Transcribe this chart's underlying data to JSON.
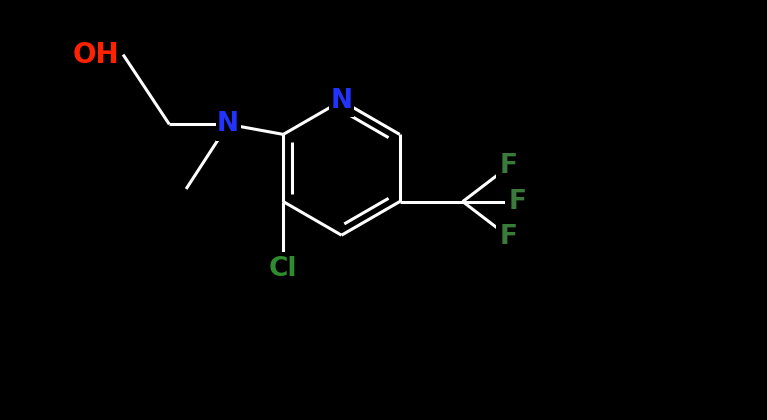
{
  "bg_color": "#000000",
  "bond_color": "#ffffff",
  "bond_width": 2.2,
  "fg_color": "#ffffff",
  "oh_color": "#ff2200",
  "n_color": "#2233ff",
  "cl_color": "#2e8b2e",
  "f_color": "#3a7a3a",
  "xlim": [
    0.0,
    8.5
  ],
  "ylim": [
    0.0,
    5.0
  ]
}
